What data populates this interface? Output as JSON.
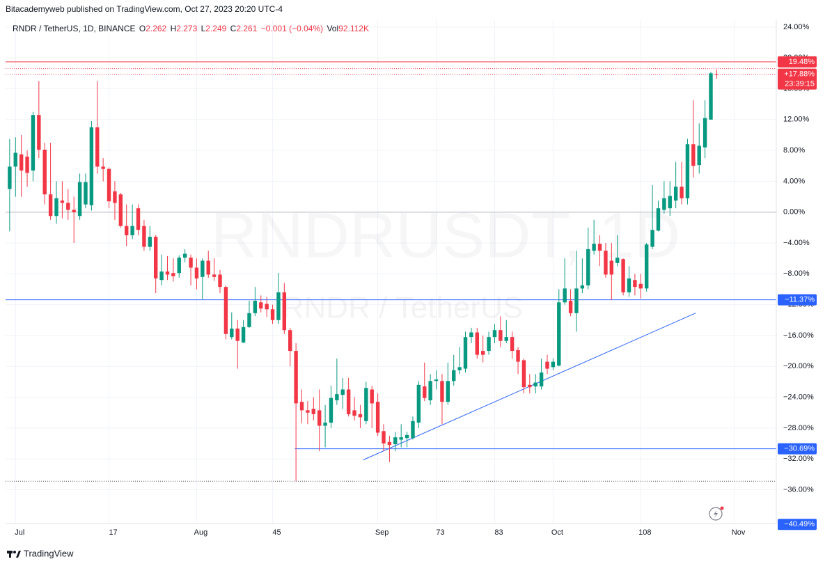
{
  "header": {
    "published": "Bitacademyweb published on TradingView.com, Oct 27, 2023 20:20 UTC-4"
  },
  "legend": {
    "symbol": "RNDR / TetherUS, 1D, BINANCE",
    "fields": [
      {
        "label": "O",
        "value": "2.262"
      },
      {
        "label": "H",
        "value": "2.273"
      },
      {
        "label": "L",
        "value": "2.249"
      },
      {
        "label": "C",
        "value": "2.261"
      }
    ],
    "change": "−0.001 (−0.04%)",
    "volume": {
      "label": "Vol",
      "value": "92.112K"
    }
  },
  "watermark": {
    "symbol": "RNDRUSDT, 1D",
    "name": "RNDR / TetherUS"
  },
  "footer": {
    "brand": "TradingView"
  },
  "chart_data": {
    "type": "candlestick",
    "up_color": "#089981",
    "down_color": "#f23645",
    "grid": true,
    "xlim": [
      -0.7,
      131.2
    ],
    "xticks": [
      {
        "value": 1,
        "label": "Jul"
      },
      17,
      {
        "value": 32,
        "label": "Aug"
      },
      45,
      {
        "value": 63,
        "label": "Sep"
      },
      73,
      83,
      {
        "value": 93,
        "label": "Oct"
      },
      108,
      {
        "value": 124,
        "label": "Nov"
      }
    ],
    "ylim": [
      -40.2,
      24.8
    ],
    "yticks": [
      {
        "value": 24,
        "label": "24.00%"
      },
      {
        "value": 20,
        "label": "20.00%"
      },
      {
        "value": 16,
        "label": "16.00%"
      },
      {
        "value": 12,
        "label": "12.00%"
      },
      {
        "value": 8,
        "label": "8.00%"
      },
      {
        "value": 4,
        "label": "4.00%"
      },
      {
        "value": 0,
        "label": "0.00%"
      },
      {
        "value": -4,
        "label": "−4.00%"
      },
      {
        "value": -8,
        "label": "−8.00%"
      },
      {
        "value": -12,
        "label": "−12.00%"
      },
      {
        "value": -16,
        "label": "−16.00%"
      },
      {
        "value": -20,
        "label": "−20.00%"
      },
      {
        "value": -24,
        "label": "−24.00%"
      },
      {
        "value": -28,
        "label": "−28.00%"
      },
      {
        "value": -32,
        "label": "−32.00%"
      },
      {
        "value": -36,
        "label": "−36.00%"
      }
    ],
    "open": [
      3.0,
      5.9,
      7.5,
      7.2,
      5.4,
      12.6,
      8.1,
      2.3,
      -0.5,
      1.5,
      1.2,
      0.3,
      -0.5,
      1,
      0.9,
      11,
      5.9,
      5.6,
      2.7,
      2.3,
      -1.8,
      -3,
      0.5,
      -1.8,
      -4.5,
      -3.2,
      -8.8,
      -7.7,
      -7.9,
      -7.9,
      -5.9,
      -5.9,
      -7.2,
      -8.4,
      -6.3,
      -8.1,
      -8.1,
      -9.7,
      -16.2,
      -15.1,
      -16.9,
      -14.9,
      -13.1,
      -11.7,
      -11.9,
      -12.6,
      -14,
      -10.4,
      -15.3,
      -18,
      -24.6,
      -25.7,
      -25.5,
      -25.7,
      -27.7,
      -27.3,
      -24.4,
      -23.7,
      -23,
      -25.7,
      -26.2,
      -27.1,
      -23,
      -24.6,
      -28.4,
      -29.8,
      -30.1,
      -29.5,
      -29.3,
      -29.3,
      -27.3,
      -22.6,
      -24.4,
      -21.9,
      -21.9,
      -24.6,
      -21.9,
      -20.5,
      -20.3,
      -16.2,
      -15.6,
      -18,
      -18,
      -16.2,
      -15.3,
      -16.7,
      -16.2,
      -17.9,
      -19.2,
      -22.4,
      -22.6,
      -22.6,
      -19.4,
      -20.1,
      -19.9,
      -11.7,
      -11.5,
      -13.1,
      -9.9,
      -9.5,
      -5,
      -4.1,
      -5,
      -6.3,
      -6.6,
      -6.1,
      -10.4,
      -8.8,
      -9.3,
      -9.9,
      -4.5,
      -2.4,
      0.3,
      0.5,
      1.5,
      3.3,
      1.8,
      8.8,
      6.1,
      8.4,
      12,
      17.9
    ],
    "high": [
      9.5,
      9.7,
      10,
      8,
      13,
      17,
      9,
      9,
      4,
      4,
      3,
      2,
      5,
      5,
      11.8,
      17,
      7,
      5.8,
      4,
      2.5,
      1,
      1,
      1,
      -1,
      -1.8,
      -3,
      -5.5,
      -5.7,
      -6,
      -5.6,
      -4.8,
      -5.5,
      -6,
      -6,
      -5,
      -6,
      -7.5,
      -9.5,
      -13,
      -14,
      -14,
      -11.5,
      -9.7,
      -10.8,
      -11,
      -12,
      -7.9,
      -9.2,
      -15,
      -17,
      -23,
      -24.5,
      -24,
      -23,
      -25,
      -22.5,
      -19,
      -21.5,
      -21.5,
      -24,
      -25,
      -22,
      -22.5,
      -23.5,
      -27.5,
      -29,
      -28.5,
      -27.5,
      -28.5,
      -26.5,
      -21.9,
      -19.5,
      -21,
      -20.5,
      -21,
      -19.5,
      -18.5,
      -17.5,
      -15.5,
      -15,
      -15,
      -16,
      -15.5,
      -14.5,
      -13.5,
      -14,
      -15.5,
      -17.5,
      -19,
      -21,
      -21,
      -19,
      -18.5,
      -19,
      -10,
      -6,
      -10,
      -5,
      -6,
      -2,
      -1,
      -3,
      -4,
      -4,
      -3,
      -6,
      -7,
      -8,
      -8,
      -4,
      3.5,
      1.5,
      4,
      4,
      6.5,
      6.5,
      9.5,
      14.5,
      11.5,
      14.5,
      18.2,
      18.5
    ],
    "low": [
      -2.5,
      2,
      2,
      3.3,
      4,
      7,
      1,
      -1,
      -1.5,
      -0.8,
      -1,
      -4,
      -1,
      0.5,
      0.2,
      5,
      4,
      0.5,
      -1,
      -2,
      -4.4,
      -3.5,
      -3,
      -5,
      -5,
      -10.5,
      -9.5,
      -8.8,
      -9,
      -8.5,
      -6.5,
      -9.5,
      -10,
      -11.3,
      -8.5,
      -8.9,
      -10.5,
      -16.5,
      -16.5,
      -20.3,
      -17,
      -15,
      -13.5,
      -13,
      -13.6,
      -14.5,
      -14.5,
      -15.8,
      -20,
      -34.9,
      -27.4,
      -27.5,
      -27,
      -31,
      -30.5,
      -28,
      -25,
      -25.5,
      -26.5,
      -27,
      -28,
      -27.5,
      -28,
      -29,
      -31,
      -32.4,
      -31,
      -30.5,
      -30.5,
      -29.5,
      -28,
      -24.5,
      -25,
      -23,
      -27.5,
      -25,
      -22.5,
      -21,
      -20.8,
      -17,
      -19,
      -19.5,
      -18.5,
      -17,
      -17.5,
      -17,
      -19,
      -21,
      -23.5,
      -23.5,
      -23.5,
      -23,
      -21,
      -20.5,
      -20,
      -12,
      -13.5,
      -15.5,
      -10.5,
      -10,
      -5.5,
      -7,
      -8.5,
      -11.4,
      -7,
      -10.8,
      -11,
      -10.8,
      -11.2,
      -10.3,
      -4.8,
      -2.5,
      -0.2,
      -0.5,
      0.5,
      1,
      1,
      4.5,
      5,
      7,
      12,
      17.3
    ],
    "close": [
      5.9,
      7.7,
      5.4,
      5.1,
      12.6,
      8.1,
      2.3,
      -0.5,
      1.8,
      1.2,
      0.3,
      0,
      3.9,
      3.9,
      11,
      5.9,
      5.6,
      1.4,
      1.2,
      -1.8,
      -3,
      -1.8,
      -2.3,
      -4.5,
      -3.2,
      -8.6,
      -7.7,
      -8.1,
      -8.3,
      -5.9,
      -5.4,
      -7.2,
      -8.6,
      -6.3,
      -8.1,
      -8.4,
      -9.7,
      -15.8,
      -15.1,
      -16.7,
      -14.9,
      -13.1,
      -11.5,
      -12.5,
      -12.6,
      -14,
      -10.4,
      -15.3,
      -18,
      -24.8,
      -25.7,
      -26,
      -26.2,
      -27.7,
      -27.3,
      -24.1,
      -23.6,
      -23,
      -26.2,
      -26.4,
      -26.6,
      -22.8,
      -24.8,
      -28.6,
      -30,
      -30.2,
      -29.2,
      -29.2,
      -28.9,
      -27.1,
      -22.4,
      -24.1,
      -21.9,
      -21.7,
      -24.6,
      -21.9,
      -20.5,
      -20.1,
      -16.2,
      -15.6,
      -18.5,
      -18.5,
      -16.2,
      -15.3,
      -16.7,
      -16.2,
      -18,
      -19.4,
      -22.7,
      -22.7,
      -22.1,
      -20.8,
      -20.3,
      -19.4,
      -11.7,
      -9.9,
      -13.1,
      -9.9,
      -9.5,
      -4.8,
      -4.1,
      -5,
      -8.1,
      -8.1,
      -5.9,
      -10.4,
      -8.6,
      -9.7,
      -9.9,
      -4.2,
      -2.3,
      0.5,
      1.8,
      2.1,
      3.3,
      1.8,
      8.8,
      6,
      8.6,
      12.2,
      18,
      17.88
    ],
    "zero_line": 0,
    "price_lines": [
      {
        "value": 19.48,
        "label": "19.48%",
        "color": "#f23645",
        "style": "solid"
      },
      {
        "value": 18.6,
        "color": "#f23645",
        "style": "dotted"
      },
      {
        "value": 17.88,
        "color": "#f23645",
        "style": "dotted"
      },
      {
        "value": -11.37,
        "label": "−11.37%",
        "color": "#2962ff",
        "style": "solid"
      },
      {
        "value": -30.69,
        "label": "−30.69%",
        "color": "#2962ff",
        "style": "solid",
        "from": 48.8
      },
      {
        "value": -34.9,
        "color": "#555555",
        "style": "dotted"
      }
    ],
    "last_price": {
      "value": 17.88,
      "label": "+17.88%",
      "countdown": "23:39:15",
      "color": "#f23645"
    },
    "axis_labels": [
      {
        "value": -40.49,
        "label": "−40.49%",
        "color": "#2962ff"
      }
    ],
    "trendline": {
      "x": [
        60.5,
        117.4
      ],
      "y": [
        -32.13,
        -13.09
      ],
      "color": "#2962ff"
    }
  }
}
